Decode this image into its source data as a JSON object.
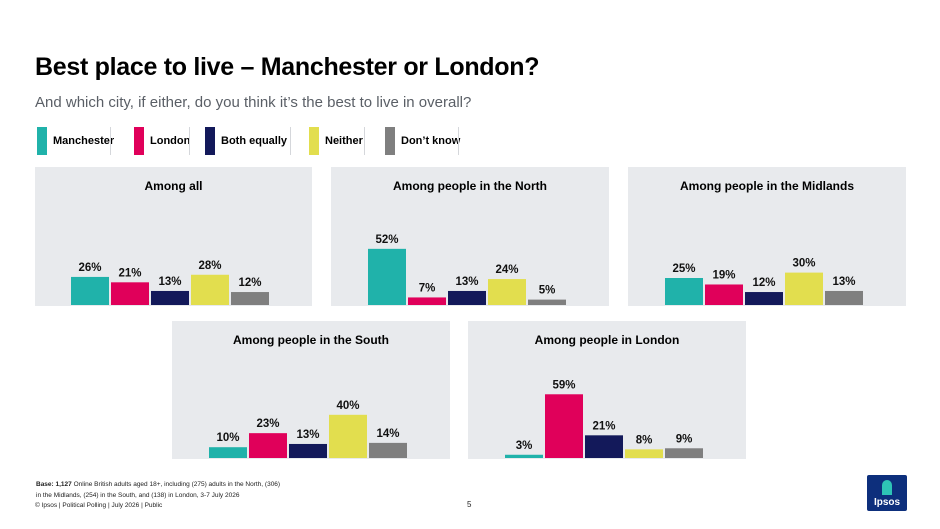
{
  "header": {
    "title": "Best place to live – Manchester or London?",
    "subtitle": "And which city, if either, do you think it’s the best to live in overall?"
  },
  "legend": [
    {
      "label": "Manchester",
      "color": "#20b2aa"
    },
    {
      "label": "London",
      "color": "#e0005a"
    },
    {
      "label": "Both equally",
      "color": "#13195a"
    },
    {
      "label": "Neither",
      "color": "#e2de4e"
    },
    {
      "label": "Don’t know",
      "color": "#7f7f7f"
    }
  ],
  "chart_data": [
    {
      "type": "bar",
      "title": "Among all",
      "categories": [
        "Manchester",
        "London",
        "Both equally",
        "Neither",
        "Don’t know"
      ],
      "values": [
        26,
        21,
        13,
        28,
        12
      ],
      "unit": "%",
      "ylim": [
        0,
        60
      ]
    },
    {
      "type": "bar",
      "title": "Among people in the North",
      "categories": [
        "Manchester",
        "London",
        "Both equally",
        "Neither",
        "Don’t know"
      ],
      "values": [
        52,
        7,
        13,
        24,
        5
      ],
      "unit": "%",
      "ylim": [
        0,
        60
      ]
    },
    {
      "type": "bar",
      "title": "Among people in the Midlands",
      "categories": [
        "Manchester",
        "London",
        "Both equally",
        "Neither",
        "Don’t know"
      ],
      "values": [
        25,
        19,
        12,
        30,
        13
      ],
      "unit": "%",
      "ylim": [
        0,
        60
      ]
    },
    {
      "type": "bar",
      "title": "Among people in the South",
      "categories": [
        "Manchester",
        "London",
        "Both equally",
        "Neither",
        "Don’t know"
      ],
      "values": [
        10,
        23,
        13,
        40,
        14
      ],
      "unit": "%",
      "ylim": [
        0,
        60
      ]
    },
    {
      "type": "bar",
      "title": "Among people in London",
      "categories": [
        "Manchester",
        "London",
        "Both equally",
        "Neither",
        "Don’t know"
      ],
      "values": [
        3,
        59,
        21,
        8,
        9
      ],
      "unit": "%",
      "ylim": [
        0,
        60
      ]
    }
  ],
  "footer": {
    "base_label": "Base: 1,127",
    "base_line1": " Online British adults aged 18+, including (275) adults in the North, (306)",
    "base_line2": "in the Midlands, (254) in the South, and (138) in London, 3-7 July 2026",
    "copyright": "© Ipsos | Political Polling | July 2026 | Public",
    "page_number": "5"
  },
  "logo": {
    "text": "Ipsos"
  }
}
